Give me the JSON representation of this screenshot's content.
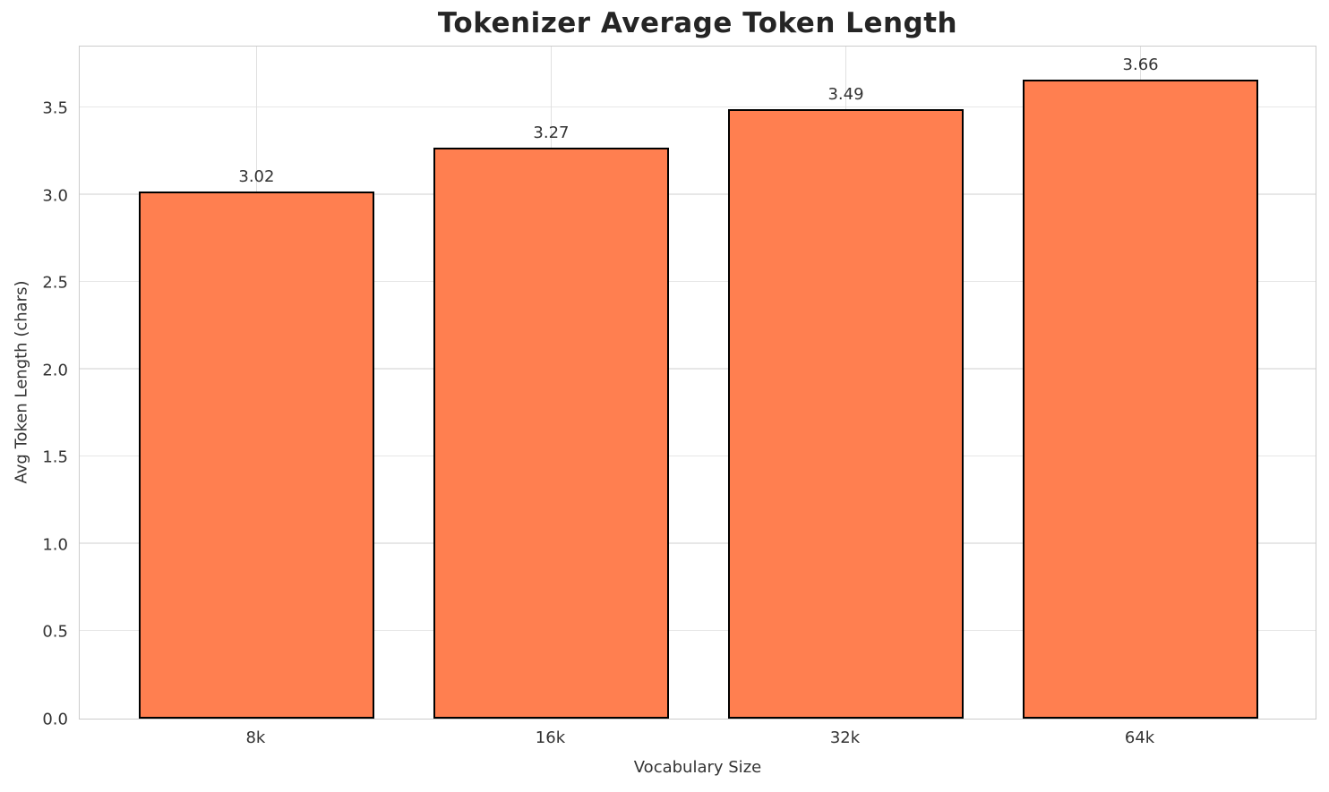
{
  "chart_data": {
    "type": "bar",
    "title": "Tokenizer Average Token Length",
    "xlabel": "Vocabulary Size",
    "ylabel": "Avg Token Length (chars)",
    "categories": [
      "8k",
      "16k",
      "32k",
      "64k"
    ],
    "values": [
      3.02,
      3.27,
      3.49,
      3.66
    ],
    "value_labels": [
      "3.02",
      "3.27",
      "3.49",
      "3.66"
    ],
    "yticks": [
      0.0,
      0.5,
      1.0,
      1.5,
      2.0,
      2.5,
      3.0,
      3.5
    ],
    "ytick_labels": [
      "0.0",
      "0.5",
      "1.0",
      "1.5",
      "2.0",
      "2.5",
      "3.0",
      "3.5"
    ],
    "ylim": [
      0,
      3.86
    ],
    "grid": true,
    "legend_position": "none",
    "colors": {
      "bar_fill": "#FF7F50",
      "bar_edge": "#000000",
      "grid": "#e7e7e7",
      "spine": "#cccccc",
      "tick_text": "#333333",
      "title_text": "#252525",
      "background": "#ffffff"
    }
  }
}
